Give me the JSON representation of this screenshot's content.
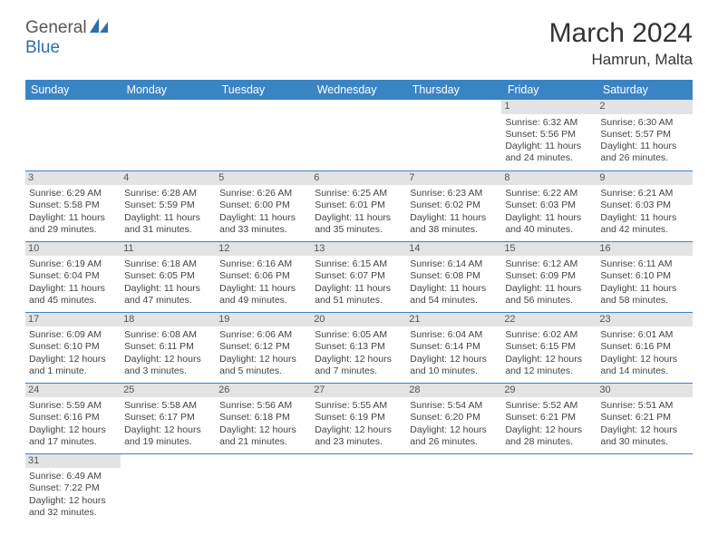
{
  "logo": {
    "text1": "General",
    "text2": "Blue",
    "shape_color": "#2f6fa8"
  },
  "title": "March 2024",
  "location": "Hamrun, Malta",
  "header_bg": "#3a84c4",
  "daynum_bg": "#e3e3e3",
  "border_color": "#3a84c4",
  "weekdays": [
    "Sunday",
    "Monday",
    "Tuesday",
    "Wednesday",
    "Thursday",
    "Friday",
    "Saturday"
  ],
  "weeks": [
    [
      null,
      null,
      null,
      null,
      null,
      {
        "n": "1",
        "sr": "6:32 AM",
        "ss": "5:56 PM",
        "dl": "11 hours and 24 minutes."
      },
      {
        "n": "2",
        "sr": "6:30 AM",
        "ss": "5:57 PM",
        "dl": "11 hours and 26 minutes."
      }
    ],
    [
      {
        "n": "3",
        "sr": "6:29 AM",
        "ss": "5:58 PM",
        "dl": "11 hours and 29 minutes."
      },
      {
        "n": "4",
        "sr": "6:28 AM",
        "ss": "5:59 PM",
        "dl": "11 hours and 31 minutes."
      },
      {
        "n": "5",
        "sr": "6:26 AM",
        "ss": "6:00 PM",
        "dl": "11 hours and 33 minutes."
      },
      {
        "n": "6",
        "sr": "6:25 AM",
        "ss": "6:01 PM",
        "dl": "11 hours and 35 minutes."
      },
      {
        "n": "7",
        "sr": "6:23 AM",
        "ss": "6:02 PM",
        "dl": "11 hours and 38 minutes."
      },
      {
        "n": "8",
        "sr": "6:22 AM",
        "ss": "6:03 PM",
        "dl": "11 hours and 40 minutes."
      },
      {
        "n": "9",
        "sr": "6:21 AM",
        "ss": "6:03 PM",
        "dl": "11 hours and 42 minutes."
      }
    ],
    [
      {
        "n": "10",
        "sr": "6:19 AM",
        "ss": "6:04 PM",
        "dl": "11 hours and 45 minutes."
      },
      {
        "n": "11",
        "sr": "6:18 AM",
        "ss": "6:05 PM",
        "dl": "11 hours and 47 minutes."
      },
      {
        "n": "12",
        "sr": "6:16 AM",
        "ss": "6:06 PM",
        "dl": "11 hours and 49 minutes."
      },
      {
        "n": "13",
        "sr": "6:15 AM",
        "ss": "6:07 PM",
        "dl": "11 hours and 51 minutes."
      },
      {
        "n": "14",
        "sr": "6:14 AM",
        "ss": "6:08 PM",
        "dl": "11 hours and 54 minutes."
      },
      {
        "n": "15",
        "sr": "6:12 AM",
        "ss": "6:09 PM",
        "dl": "11 hours and 56 minutes."
      },
      {
        "n": "16",
        "sr": "6:11 AM",
        "ss": "6:10 PM",
        "dl": "11 hours and 58 minutes."
      }
    ],
    [
      {
        "n": "17",
        "sr": "6:09 AM",
        "ss": "6:10 PM",
        "dl": "12 hours and 1 minute."
      },
      {
        "n": "18",
        "sr": "6:08 AM",
        "ss": "6:11 PM",
        "dl": "12 hours and 3 minutes."
      },
      {
        "n": "19",
        "sr": "6:06 AM",
        "ss": "6:12 PM",
        "dl": "12 hours and 5 minutes."
      },
      {
        "n": "20",
        "sr": "6:05 AM",
        "ss": "6:13 PM",
        "dl": "12 hours and 7 minutes."
      },
      {
        "n": "21",
        "sr": "6:04 AM",
        "ss": "6:14 PM",
        "dl": "12 hours and 10 minutes."
      },
      {
        "n": "22",
        "sr": "6:02 AM",
        "ss": "6:15 PM",
        "dl": "12 hours and 12 minutes."
      },
      {
        "n": "23",
        "sr": "6:01 AM",
        "ss": "6:16 PM",
        "dl": "12 hours and 14 minutes."
      }
    ],
    [
      {
        "n": "24",
        "sr": "5:59 AM",
        "ss": "6:16 PM",
        "dl": "12 hours and 17 minutes."
      },
      {
        "n": "25",
        "sr": "5:58 AM",
        "ss": "6:17 PM",
        "dl": "12 hours and 19 minutes."
      },
      {
        "n": "26",
        "sr": "5:56 AM",
        "ss": "6:18 PM",
        "dl": "12 hours and 21 minutes."
      },
      {
        "n": "27",
        "sr": "5:55 AM",
        "ss": "6:19 PM",
        "dl": "12 hours and 23 minutes."
      },
      {
        "n": "28",
        "sr": "5:54 AM",
        "ss": "6:20 PM",
        "dl": "12 hours and 26 minutes."
      },
      {
        "n": "29",
        "sr": "5:52 AM",
        "ss": "6:21 PM",
        "dl": "12 hours and 28 minutes."
      },
      {
        "n": "30",
        "sr": "5:51 AM",
        "ss": "6:21 PM",
        "dl": "12 hours and 30 minutes."
      }
    ],
    [
      {
        "n": "31",
        "sr": "6:49 AM",
        "ss": "7:22 PM",
        "dl": "12 hours and 32 minutes."
      },
      null,
      null,
      null,
      null,
      null,
      null
    ]
  ],
  "labels": {
    "sunrise": "Sunrise:",
    "sunset": "Sunset:",
    "daylight": "Daylight:"
  }
}
